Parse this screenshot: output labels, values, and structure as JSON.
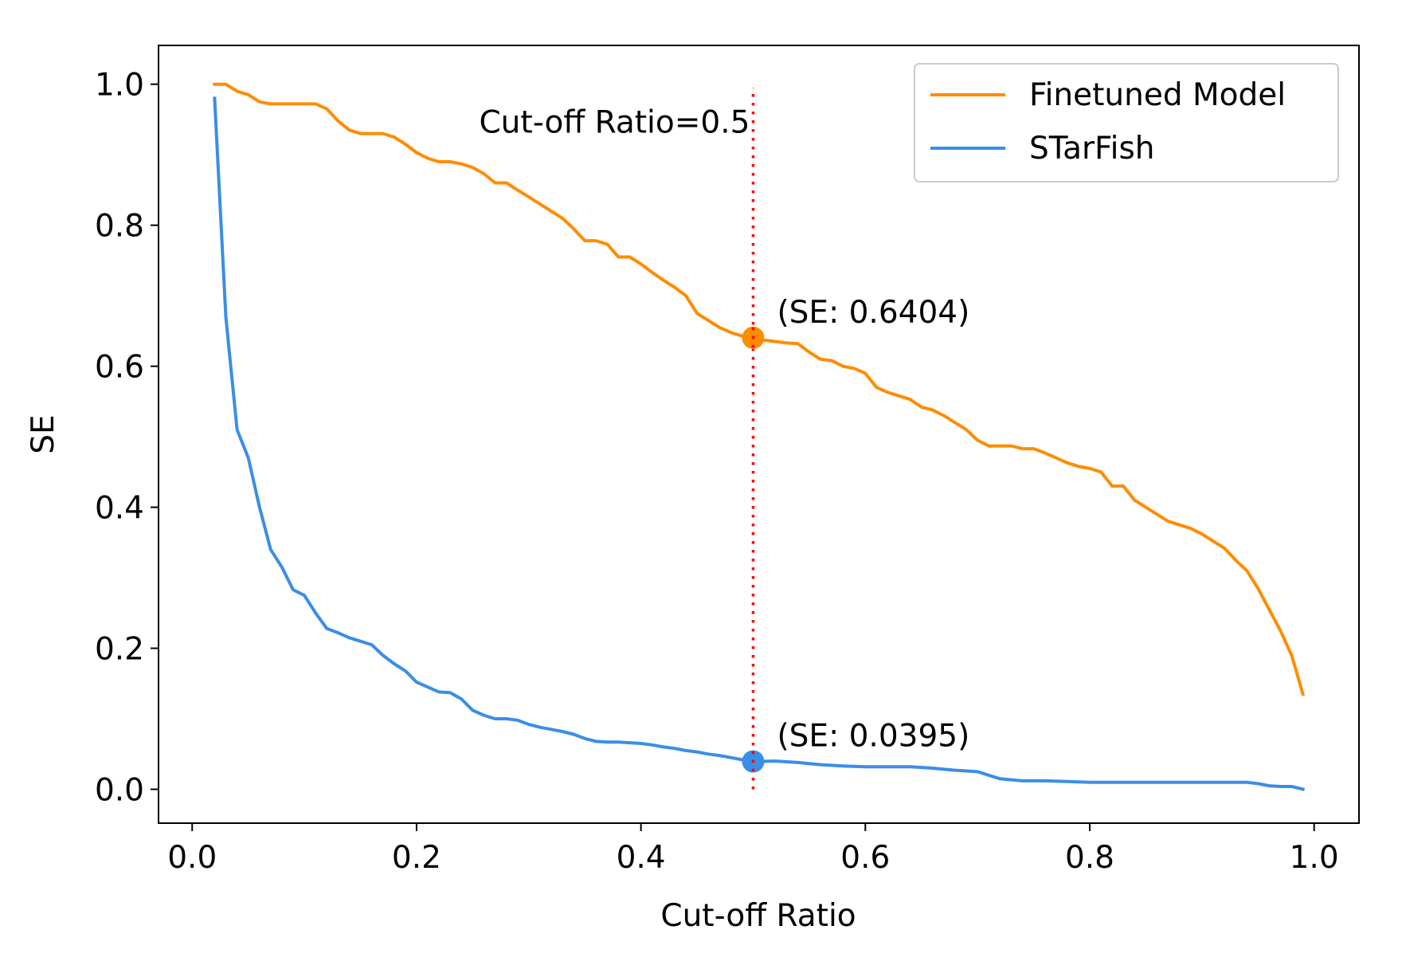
{
  "chart_data": {
    "type": "line",
    "title": "",
    "xlabel": "Cut-off Ratio",
    "ylabel": "SE",
    "xlim": [
      -0.03,
      1.04
    ],
    "ylim": [
      -0.048,
      1.055
    ],
    "xticks": [
      0.0,
      0.2,
      0.4,
      0.6,
      0.8,
      1.0
    ],
    "xtick_labels": [
      "0.0",
      "0.2",
      "0.4",
      "0.6",
      "0.8",
      "1.0"
    ],
    "yticks": [
      0.0,
      0.2,
      0.4,
      0.6,
      0.8,
      1.0
    ],
    "ytick_labels": [
      "0.0",
      "0.2",
      "0.4",
      "0.6",
      "0.8",
      "1.0"
    ],
    "grid": false,
    "legend_position": "top-right",
    "series": [
      {
        "name": "Finetuned Model",
        "color": "#ff8c00",
        "x": [
          0.02,
          0.03,
          0.04,
          0.05,
          0.06,
          0.07,
          0.08,
          0.09,
          0.1,
          0.11,
          0.12,
          0.13,
          0.14,
          0.15,
          0.16,
          0.17,
          0.18,
          0.19,
          0.2,
          0.21,
          0.22,
          0.23,
          0.24,
          0.25,
          0.26,
          0.27,
          0.28,
          0.29,
          0.3,
          0.31,
          0.32,
          0.33,
          0.34,
          0.35,
          0.36,
          0.37,
          0.38,
          0.39,
          0.4,
          0.41,
          0.42,
          0.43,
          0.44,
          0.45,
          0.46,
          0.47,
          0.48,
          0.49,
          0.5,
          0.51,
          0.52,
          0.53,
          0.54,
          0.55,
          0.56,
          0.57,
          0.58,
          0.59,
          0.6,
          0.61,
          0.62,
          0.63,
          0.64,
          0.65,
          0.66,
          0.67,
          0.68,
          0.69,
          0.7,
          0.71,
          0.72,
          0.73,
          0.74,
          0.75,
          0.76,
          0.77,
          0.78,
          0.79,
          0.8,
          0.81,
          0.82,
          0.83,
          0.84,
          0.85,
          0.86,
          0.87,
          0.88,
          0.89,
          0.9,
          0.91,
          0.92,
          0.93,
          0.94,
          0.95,
          0.96,
          0.97,
          0.98,
          0.99
        ],
        "y": [
          1.0,
          1.0,
          0.99,
          0.985,
          0.975,
          0.972,
          0.972,
          0.972,
          0.972,
          0.972,
          0.965,
          0.948,
          0.935,
          0.93,
          0.93,
          0.93,
          0.925,
          0.915,
          0.903,
          0.895,
          0.89,
          0.89,
          0.887,
          0.882,
          0.873,
          0.86,
          0.86,
          0.85,
          0.84,
          0.83,
          0.82,
          0.81,
          0.795,
          0.778,
          0.778,
          0.773,
          0.755,
          0.755,
          0.745,
          0.733,
          0.722,
          0.712,
          0.7,
          0.675,
          0.665,
          0.655,
          0.648,
          0.643,
          0.6404,
          0.637,
          0.635,
          0.633,
          0.632,
          0.62,
          0.61,
          0.608,
          0.6,
          0.597,
          0.59,
          0.57,
          0.563,
          0.558,
          0.553,
          0.542,
          0.538,
          0.53,
          0.52,
          0.51,
          0.495,
          0.487,
          0.487,
          0.487,
          0.483,
          0.483,
          0.477,
          0.47,
          0.463,
          0.458,
          0.455,
          0.45,
          0.43,
          0.43,
          0.41,
          0.4,
          0.39,
          0.38,
          0.375,
          0.37,
          0.362,
          0.352,
          0.342,
          0.325,
          0.31,
          0.285,
          0.255,
          0.225,
          0.19,
          0.135
        ]
      },
      {
        "name": "STarFish",
        "color": "#3a8ee6",
        "x": [
          0.02,
          0.03,
          0.04,
          0.05,
          0.06,
          0.07,
          0.08,
          0.09,
          0.1,
          0.11,
          0.12,
          0.13,
          0.14,
          0.15,
          0.16,
          0.17,
          0.18,
          0.19,
          0.2,
          0.21,
          0.22,
          0.23,
          0.24,
          0.25,
          0.26,
          0.27,
          0.28,
          0.29,
          0.3,
          0.31,
          0.32,
          0.33,
          0.34,
          0.35,
          0.36,
          0.37,
          0.38,
          0.39,
          0.4,
          0.41,
          0.42,
          0.43,
          0.44,
          0.45,
          0.46,
          0.47,
          0.48,
          0.49,
          0.5,
          0.52,
          0.54,
          0.56,
          0.58,
          0.6,
          0.62,
          0.64,
          0.66,
          0.68,
          0.7,
          0.72,
          0.74,
          0.76,
          0.78,
          0.8,
          0.82,
          0.84,
          0.86,
          0.88,
          0.9,
          0.92,
          0.94,
          0.95,
          0.96,
          0.97,
          0.98,
          0.99
        ],
        "y": [
          0.98,
          0.67,
          0.51,
          0.47,
          0.4,
          0.34,
          0.315,
          0.283,
          0.275,
          0.25,
          0.228,
          0.222,
          0.215,
          0.21,
          0.205,
          0.19,
          0.178,
          0.168,
          0.152,
          0.145,
          0.138,
          0.137,
          0.128,
          0.112,
          0.105,
          0.1,
          0.1,
          0.098,
          0.092,
          0.088,
          0.085,
          0.082,
          0.078,
          0.072,
          0.068,
          0.067,
          0.067,
          0.066,
          0.065,
          0.063,
          0.06,
          0.058,
          0.055,
          0.053,
          0.05,
          0.048,
          0.045,
          0.042,
          0.0395,
          0.04,
          0.038,
          0.035,
          0.033,
          0.032,
          0.032,
          0.032,
          0.03,
          0.027,
          0.025,
          0.015,
          0.012,
          0.012,
          0.011,
          0.01,
          0.01,
          0.01,
          0.01,
          0.01,
          0.01,
          0.01,
          0.01,
          0.008,
          0.005,
          0.004,
          0.004,
          0.0
        ]
      }
    ],
    "reference_line": {
      "x": 0.5,
      "y_range": [
        0.0,
        0.995
      ],
      "color": "#ff0000",
      "style": "dotted",
      "label": "Cut-off Ratio=0.5"
    },
    "highlight_points": [
      {
        "series": "Finetuned Model",
        "x": 0.5,
        "y": 0.6404,
        "color": "#ff8c00",
        "label": "(SE: 0.6404)"
      },
      {
        "series": "STarFish",
        "x": 0.5,
        "y": 0.0395,
        "color": "#3a8ee6",
        "label": "(SE: 0.0395)"
      }
    ]
  }
}
